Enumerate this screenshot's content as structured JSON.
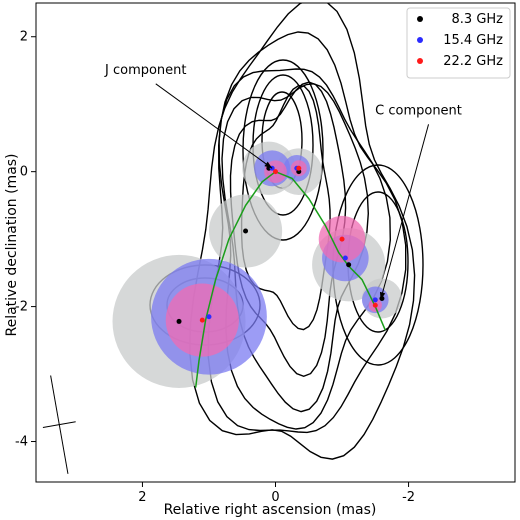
{
  "chart_data": {
    "type": "scatter",
    "title": "",
    "xlabel": "Relative right ascension (mas)",
    "ylabel": "Relative declination (mas)",
    "xlim": [
      3.6,
      -3.6
    ],
    "ylim": [
      -4.6,
      2.5
    ],
    "x_ticks": [
      2,
      0,
      -2
    ],
    "y_ticks": [
      2,
      0,
      -2,
      -4
    ],
    "x_tick_labels": [
      "2",
      "0",
      "-2"
    ],
    "y_tick_labels": [
      "2",
      "0",
      "-2",
      "-4"
    ],
    "grid": false,
    "legend_placement": "top-right",
    "series": [
      {
        "name": "8.3 GHz",
        "color": "#000000",
        "fill": "#c8cbcb",
        "points": [
          {
            "x": 0.1,
            "y": 0.05,
            "size": 0.4
          },
          {
            "x": -0.35,
            "y": 0.0,
            "size": 0.35
          },
          {
            "x": 0.45,
            "y": -0.88,
            "size": 0.55
          },
          {
            "x": -1.1,
            "y": -1.38,
            "size": 0.55
          },
          {
            "x": -1.6,
            "y": -1.88,
            "size": 0.3
          },
          {
            "x": 1.45,
            "y": -2.22,
            "size": 1.0
          }
        ]
      },
      {
        "name": "15.4 GHz",
        "color": "#2b2bff",
        "fill": "#7b7bf2",
        "points": [
          {
            "x": 0.05,
            "y": 0.05,
            "size": 0.27
          },
          {
            "x": -0.32,
            "y": 0.05,
            "size": 0.2
          },
          {
            "x": -1.05,
            "y": -1.28,
            "size": 0.35
          },
          {
            "x": -1.5,
            "y": -1.9,
            "size": 0.2
          },
          {
            "x": 1.0,
            "y": -2.15,
            "size": 0.87
          }
        ]
      },
      {
        "name": "22.2 GHz",
        "color": "#ff1a1a",
        "fill": "#f06bb3",
        "points": [
          {
            "x": 0.0,
            "y": 0.0,
            "size": 0.17
          },
          {
            "x": -0.35,
            "y": 0.05,
            "size": 0.12
          },
          {
            "x": -1.0,
            "y": -1.0,
            "size": 0.35
          },
          {
            "x": -1.5,
            "y": -1.98,
            "size": 0.1
          },
          {
            "x": 1.1,
            "y": -2.2,
            "size": 0.55
          }
        ]
      }
    ],
    "ridge_line": {
      "color": "#1a9e1a",
      "x": [
        1.2,
        1.15,
        1.05,
        0.9,
        0.7,
        0.45,
        0.2,
        0.0,
        -0.25,
        -0.5,
        -0.75,
        -0.95,
        -1.1,
        -1.3,
        -1.5,
        -1.65
      ],
      "y": [
        -3.2,
        -2.8,
        -2.2,
        -1.6,
        -1.0,
        -0.5,
        -0.15,
        0.0,
        -0.1,
        -0.4,
        -0.8,
        -1.2,
        -1.4,
        -1.6,
        -2.0,
        -2.35
      ]
    },
    "annotations": [
      {
        "text": "J component",
        "text_x": 1.95,
        "text_y": 1.45,
        "target_x": 0.05,
        "target_y": 0.05
      },
      {
        "text": "C component",
        "text_x": -2.15,
        "text_y": 0.85,
        "target_x": -1.58,
        "target_y": -1.9
      }
    ],
    "beam": {
      "major": 1.5,
      "minor": 0.5,
      "pa_deg": 10,
      "center_x": 3.25,
      "center_y": -3.75
    }
  }
}
